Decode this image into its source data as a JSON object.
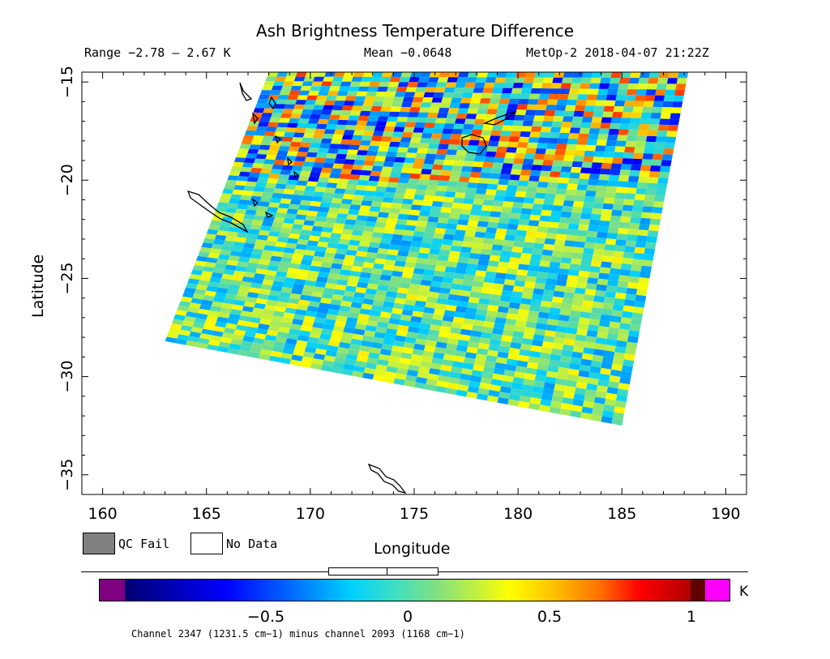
{
  "header": {
    "title": "Ash Brightness Temperature Difference",
    "range": "Range −2.78 – 2.67 K",
    "mean": "Mean −0.0648",
    "satellite_time": "MetOp-2 2018-04-07 21:22Z"
  },
  "legend": {
    "qc_fail": "QC Fail",
    "no_data": "No Data"
  },
  "colorbar": {
    "unit": "K",
    "ticks": [
      "−0.5",
      "0",
      "0.5",
      "1"
    ],
    "tick_values": [
      -0.5,
      0,
      0.5,
      1
    ],
    "vmin": -1.0,
    "vmax": 1.0,
    "caption": "Channel 2347 (1231.5 cm−1) minus channel 2093 (1168 cm−1)"
  },
  "chart_data": {
    "type": "heatmap",
    "title": "Ash Brightness Temperature Difference",
    "xlabel": "Longitude",
    "ylabel": "Latitude",
    "xlim": [
      159,
      191
    ],
    "ylim": [
      -36,
      -14.5
    ],
    "xticks": [
      160,
      165,
      170,
      175,
      180,
      185,
      190
    ],
    "xtick_labels": [
      "160",
      "165",
      "170",
      "175",
      "180",
      "185",
      "190"
    ],
    "yticks": [
      -15,
      -20,
      -25,
      -30,
      -35
    ],
    "ytick_labels": [
      "−15",
      "−20",
      "−25",
      "−30",
      "−35"
    ],
    "units": "K",
    "value_range": [
      -2.78,
      2.67
    ],
    "mean": -0.0648,
    "swath_corners_lonlat": [
      [
        168.0,
        -14.5
      ],
      [
        188.2,
        -14.5
      ],
      [
        185.0,
        -32.5
      ],
      [
        163.0,
        -28.2
      ]
    ],
    "swath_band_means": [
      {
        "lat_range": [
          -14.5,
          -19.5
        ],
        "mean_value": -0.3
      },
      {
        "lat_range": [
          -19.5,
          -24.5
        ],
        "mean_value": -0.25
      },
      {
        "lat_range": [
          -24.5,
          -29.5
        ],
        "mean_value": 0.1
      },
      {
        "lat_range": [
          -29.5,
          -32.5
        ],
        "mean_value": 0.15
      }
    ],
    "colormap": [
      "#000070",
      "#0000ff",
      "#0070ff",
      "#00d0ff",
      "#80e080",
      "#ffff00",
      "#ff7000",
      "#ff0000",
      "#b00000"
    ],
    "underflow_color": "#800080",
    "overflow_color": "#ff00ff",
    "qc_fail_color": "#808080",
    "no_data_color": "#ffffff"
  }
}
